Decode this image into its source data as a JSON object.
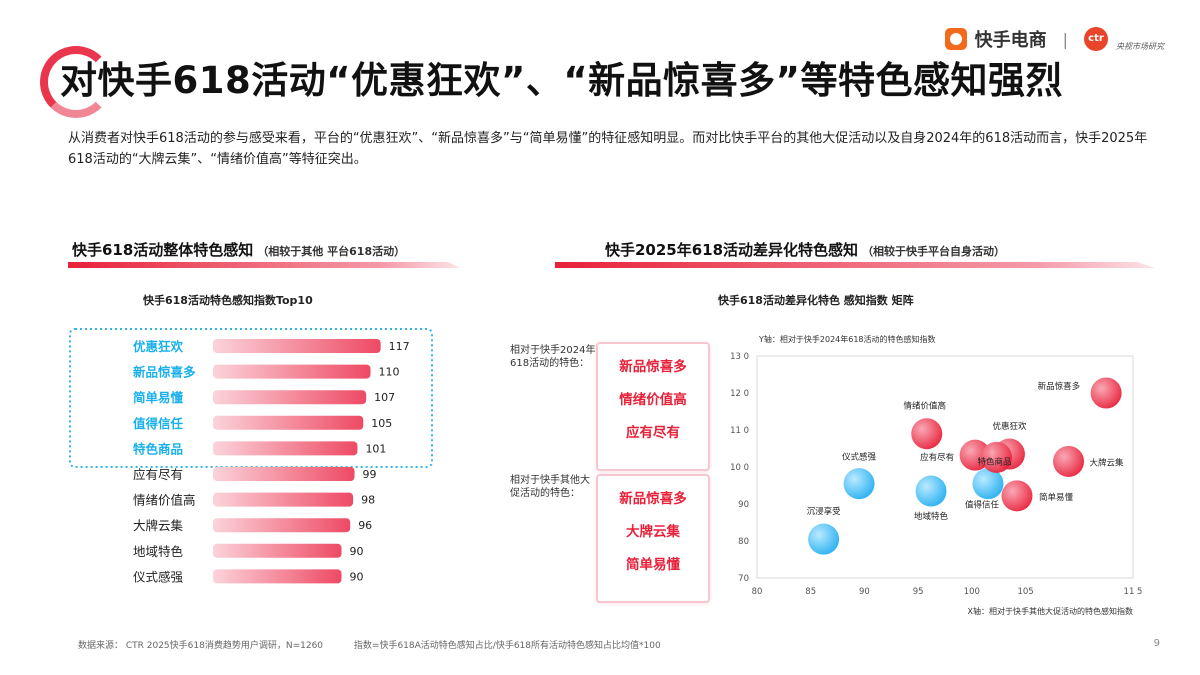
{
  "header": {
    "title": "对快手618活动“优惠狂欢”、“新品惊喜多”等特色感知强烈",
    "brand_name": "快手电商",
    "brand_separator": "|",
    "ctr_logo": "ctr",
    "ctr_subtitle": "央视市场研究"
  },
  "intro": "从消费者对快手618活动的参与感受来看，平台的“优惠狂欢”、“新品惊喜多”与“简单易懂”的特征感知明显。而对比快手平台的其他大促活动以及自身2024年的618活动而言，快手2025年618活动的“大牌云集”、“情绪价值高”等特征突出。",
  "left_section": {
    "title": "快手618活动整体特色感知",
    "note": "（相较于其他 平台618活动）"
  },
  "right_section": {
    "title": "快手2025年618活动差异化特色感知",
    "note": "（相较于快手平台自身活动）"
  },
  "left_box_row": {
    "label": "相对于快手2024年618活动的特色：",
    "items": [
      "新品惊喜多",
      "情绪价值高",
      "应有尽有"
    ]
  },
  "right_box_row": {
    "label": "相对于快手其他大促活动的特色：",
    "items": [
      "新品惊喜多",
      "大牌云集",
      "简单易懂"
    ]
  },
  "chart_data": [
    {
      "type": "bar",
      "orientation": "horizontal",
      "title": "快手618活动特色感知指数Top10",
      "categories": [
        "优惠狂欢",
        "新品惊喜多",
        "简单易懂",
        "值得信任",
        "特色商品",
        "应有尽有",
        "情绪价值高",
        "大牌云集",
        "地域特色",
        "仪式感强"
      ],
      "values": [
        117,
        110,
        107,
        105,
        101,
        99,
        98,
        96,
        90,
        90
      ],
      "highlighted_top": 5,
      "colors": {
        "highlight_label": "#1ab0ec",
        "normal_label": "#222222",
        "bar": "#ee4a64",
        "dotted_box": "#32b5ea"
      }
    },
    {
      "type": "scatter",
      "title": "快手618活动差异化特色 感知指数 矩阵",
      "xlabel": "X轴：相对于快手其他大促活动的特色感知指数",
      "ylabel": "Y轴：相对于快手2024年618活动的特色感知指数",
      "xlim": [
        80,
        115
      ],
      "ylim": [
        70,
        130
      ],
      "x_ticks": [
        "80",
        "85",
        "90",
        "95",
        "100",
        "105",
        "11 5"
      ],
      "y_ticks": [
        "70",
        "80",
        "90",
        "10 0",
        "11 0",
        "12 0",
        "13 0"
      ],
      "grid": false,
      "points": [
        {
          "label": "新品惊喜多",
          "x": 112.5,
          "y": 120,
          "group": "red"
        },
        {
          "label": "情绪价值高",
          "x": 95.8,
          "y": 109,
          "group": "red"
        },
        {
          "label": "优惠狂欢",
          "x": 103.5,
          "y": 103.5,
          "group": "red"
        },
        {
          "label": "应有尽有",
          "x": 100.3,
          "y": 103.2,
          "group": "red"
        },
        {
          "label": "特色商品",
          "x": 102.3,
          "y": 102.6,
          "group": "red"
        },
        {
          "label": "大牌云集",
          "x": 109,
          "y": 101.5,
          "group": "red"
        },
        {
          "label": "简单易懂",
          "x": 104.2,
          "y": 92.2,
          "group": "red"
        },
        {
          "label": "仪式感强",
          "x": 89.5,
          "y": 95.5,
          "group": "blue"
        },
        {
          "label": "地域特色",
          "x": 96.2,
          "y": 93.5,
          "group": "blue"
        },
        {
          "label": "值得信任",
          "x": 101.5,
          "y": 95.5,
          "group": "blue"
        },
        {
          "label": "沉浸享受",
          "x": 86.2,
          "y": 80.5,
          "group": "blue"
        }
      ],
      "colors": {
        "red": "#e8213a",
        "blue": "#23aef0"
      }
    }
  ],
  "footer": {
    "source": "数据来源： CTR 2025快手618消费趋势用户调研，N=1260",
    "formula": "指数=快手618A活动特色感知占比/快手618所有活动特色感知占比均值*100"
  },
  "page_number": "9"
}
